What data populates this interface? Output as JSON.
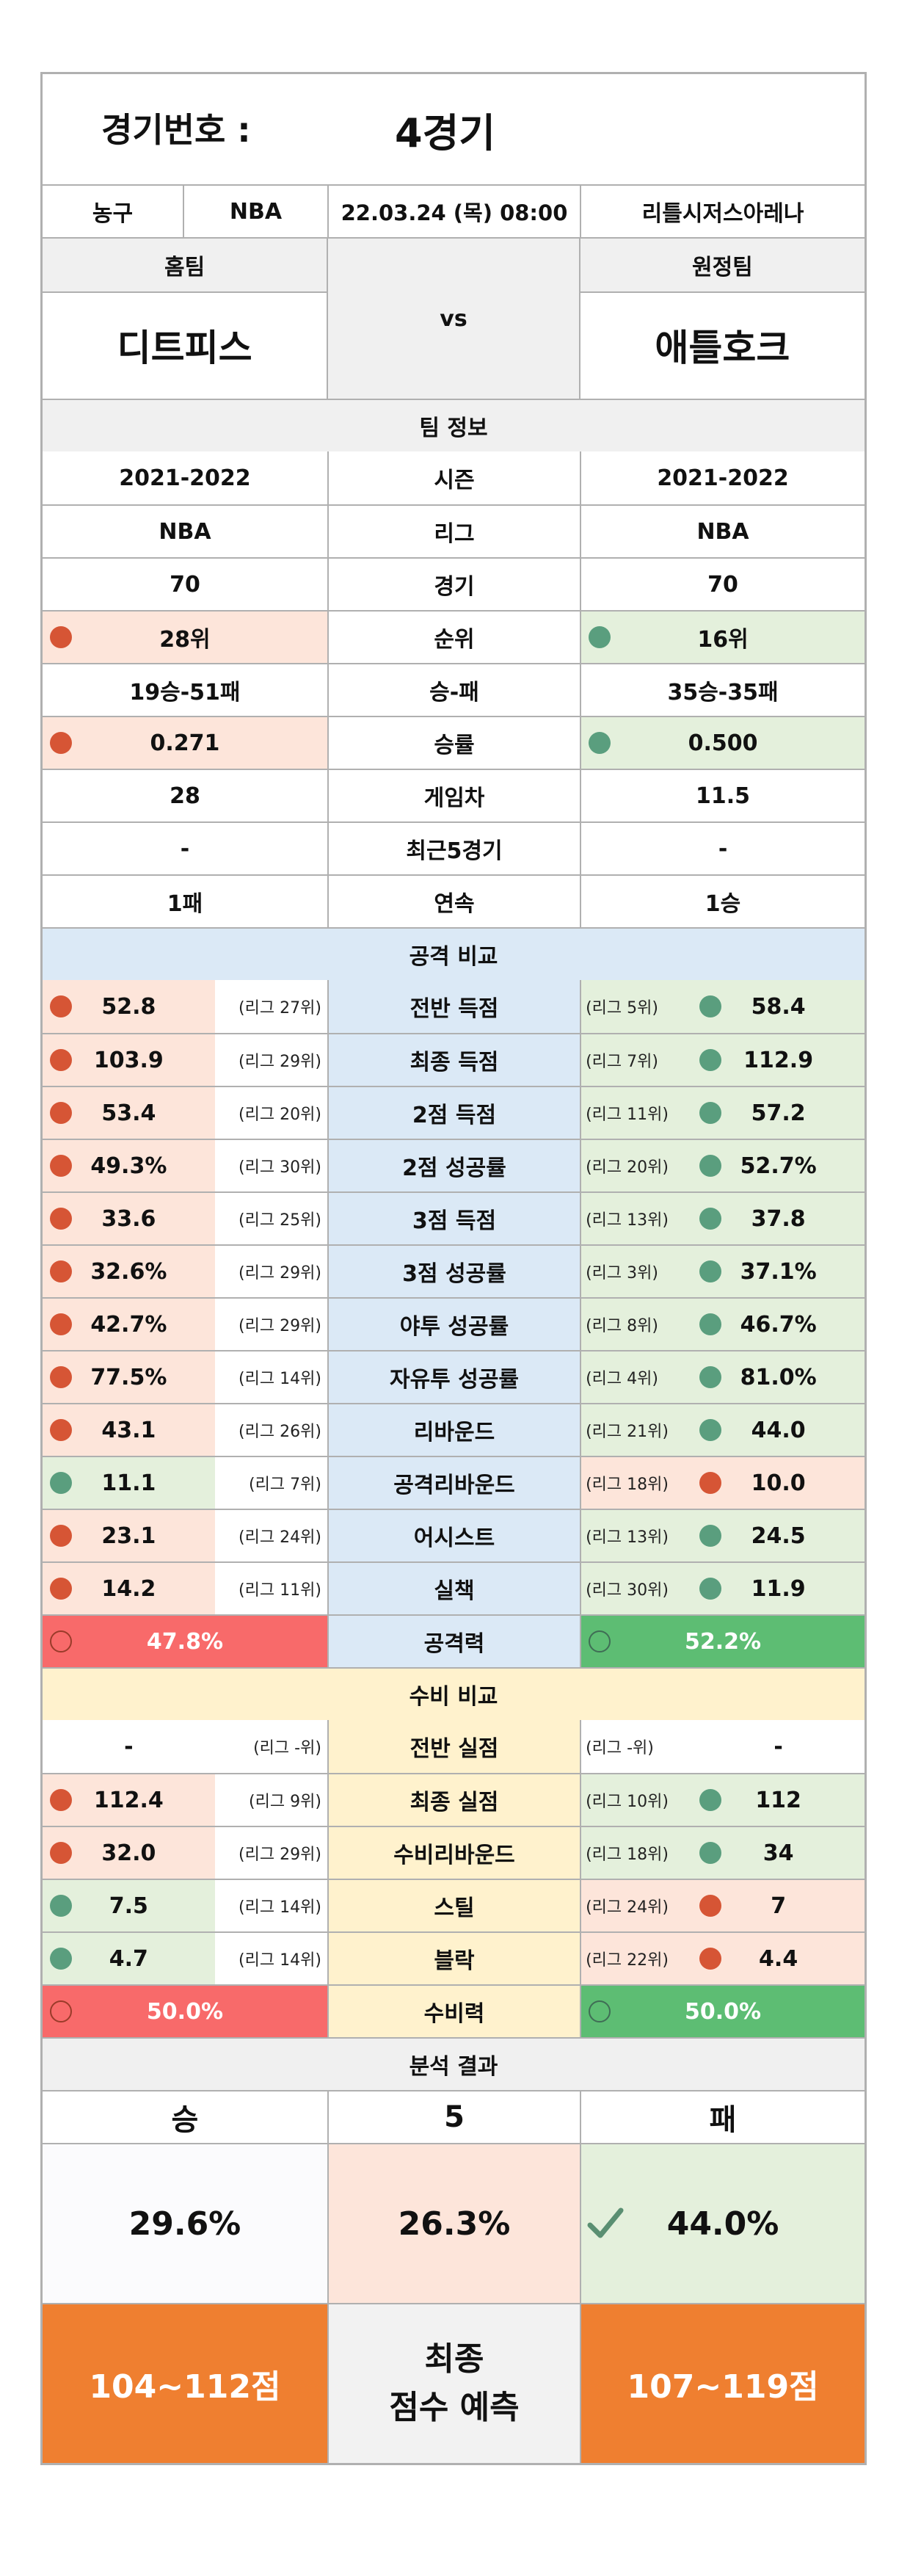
{
  "header": {
    "label": "경기번호 :",
    "value": "4경기"
  },
  "info": {
    "sport": "농구",
    "league": "NBA",
    "datetime": "22.03.24 (목) 08:00",
    "venue": "리틀시저스아레나"
  },
  "teams": {
    "home_label": "홈팀",
    "away_label": "원정팀",
    "home": "디트피스",
    "away": "애틀호크",
    "vs": "vs"
  },
  "team_info": {
    "title": "팀 정보",
    "rows": [
      {
        "home": "2021-2022",
        "label": "시즌",
        "away": "2021-2022"
      },
      {
        "home": "NBA",
        "label": "리그",
        "away": "NBA"
      },
      {
        "home": "70",
        "label": "경기",
        "away": "70"
      },
      {
        "home": "28위",
        "label": "순위",
        "away": "16위"
      },
      {
        "home": "19승-51패",
        "label": "승-패",
        "away": "35승-35패"
      },
      {
        "home": "0.271",
        "label": "승률",
        "away": "0.500"
      },
      {
        "home": "28",
        "label": "게임차",
        "away": "11.5"
      },
      {
        "home": "-",
        "label": "최근5경기",
        "away": "-"
      },
      {
        "home": "1패",
        "label": "연속",
        "away": "1승"
      }
    ]
  },
  "offense": {
    "title": "공격 비교",
    "rows": [
      {
        "home": "52.8",
        "home_rank": "(리그 27위)",
        "label": "전반 득점",
        "away_rank": "(리그 5위)",
        "away": "58.4"
      },
      {
        "home": "103.9",
        "home_rank": "(리그 29위)",
        "label": "최종 득점",
        "away_rank": "(리그 7위)",
        "away": "112.9"
      },
      {
        "home": "53.4",
        "home_rank": "(리그 20위)",
        "label": "2점 득점",
        "away_rank": "(리그 11위)",
        "away": "57.2"
      },
      {
        "home": "49.3%",
        "home_rank": "(리그 30위)",
        "label": "2점 성공률",
        "away_rank": "(리그 20위)",
        "away": "52.7%"
      },
      {
        "home": "33.6",
        "home_rank": "(리그 25위)",
        "label": "3점 득점",
        "away_rank": "(리그 13위)",
        "away": "37.8"
      },
      {
        "home": "32.6%",
        "home_rank": "(리그 29위)",
        "label": "3점 성공률",
        "away_rank": "(리그 3위)",
        "away": "37.1%"
      },
      {
        "home": "42.7%",
        "home_rank": "(리그 29위)",
        "label": "야투 성공률",
        "away_rank": "(리그 8위)",
        "away": "46.7%"
      },
      {
        "home": "77.5%",
        "home_rank": "(리그 14위)",
        "label": "자유투 성공률",
        "away_rank": "(리그 4위)",
        "away": "81.0%"
      },
      {
        "home": "43.1",
        "home_rank": "(리그 26위)",
        "label": "리바운드",
        "away_rank": "(리그 21위)",
        "away": "44.0"
      },
      {
        "home": "11.1",
        "home_rank": "(리그 7위)",
        "label": "공격리바운드",
        "away_rank": "(리그 18위)",
        "away": "10.0"
      },
      {
        "home": "23.1",
        "home_rank": "(리그 24위)",
        "label": "어시스트",
        "away_rank": "(리그 13위)",
        "away": "24.5"
      },
      {
        "home": "14.2",
        "home_rank": "(리그 11위)",
        "label": "실책",
        "away_rank": "(리그 30위)",
        "away": "11.9"
      }
    ],
    "power": {
      "home": "47.8%",
      "label": "공격력",
      "away": "52.2%"
    }
  },
  "defense": {
    "title": "수비 비교",
    "rows": [
      {
        "home": "-",
        "home_rank": "(리그 -위)",
        "label": "전반 실점",
        "away_rank": "(리그 -위)",
        "away": "-"
      },
      {
        "home": "112.4",
        "home_rank": "(리그 9위)",
        "label": "최종 실점",
        "away_rank": "(리그 10위)",
        "away": "112"
      },
      {
        "home": "32.0",
        "home_rank": "(리그 29위)",
        "label": "수비리바운드",
        "away_rank": "(리그 18위)",
        "away": "34"
      },
      {
        "home": "7.5",
        "home_rank": "(리그 14위)",
        "label": "스틸",
        "away_rank": "(리그 24위)",
        "away": "7"
      },
      {
        "home": "4.7",
        "home_rank": "(리그 14위)",
        "label": "블락",
        "away_rank": "(리그 22위)",
        "away": "4.4"
      }
    ],
    "power": {
      "home": "50.0%",
      "label": "수비력",
      "away": "50.0%"
    }
  },
  "analysis": {
    "title": "분석 결과",
    "win_label": "승",
    "draw_label": "5",
    "lose_label": "패",
    "win_pct": "29.6%",
    "draw_pct": "26.3%",
    "lose_pct": "44.0%",
    "check_icon": "check-icon",
    "home_score": "104~112점",
    "final_line1": "최종",
    "final_line2": "점수 예측",
    "away_score": "107~119점"
  },
  "colors": {
    "worse": "#fde5da",
    "better": "#e4f0dc",
    "offense_bg": "#dbe9f6",
    "defense_bg": "#fff2cd",
    "red_dot": "#d65535",
    "green_dot": "#5a9e7e",
    "orange": "#ef7f30"
  }
}
